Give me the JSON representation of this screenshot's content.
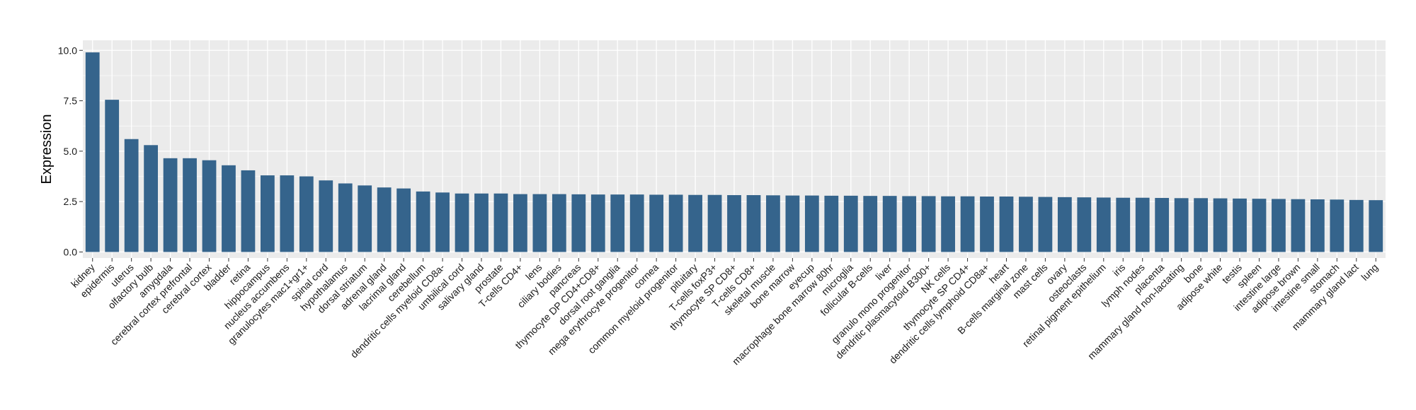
{
  "chart_data": {
    "type": "bar",
    "title": "",
    "xlabel": "",
    "ylabel": "Expression",
    "ylim": [
      -0.3,
      10.5
    ],
    "yticks": [
      0.0,
      2.5,
      5.0,
      7.5,
      10.0
    ],
    "ytick_labels": [
      "0.0",
      "2.5",
      "5.0",
      "7.5",
      "10.0"
    ],
    "grid": true,
    "legend": "none",
    "colors": {
      "bar": "#35648c",
      "panel": "#ebebeb",
      "grid": "#ffffff"
    },
    "categories": [
      "kidney",
      "epidermis",
      "uterus",
      "olfactory bulb",
      "amygdala",
      "cerebral cortex prefrontal",
      "cerebral cortex",
      "bladder",
      "retina",
      "hippocampus",
      "nucleus accumbens",
      "granulocytes mac1+gr1+",
      "spinal cord",
      "hypothalamus",
      "dorsal striatum",
      "adrenal gland",
      "lacrimal gland",
      "cerebellum",
      "dendritic cells myeloid CD8a-",
      "umbilical cord",
      "salivary gland",
      "prostate",
      "T-cells CD4+",
      "lens",
      "ciliary bodies",
      "pancreas",
      "thymocyte DP CD4+CD8+",
      "dorsal root ganglia",
      "mega erythrocyte progenitor",
      "cornea",
      "common myeloid progenitor",
      "pituitary",
      "T-cells foxP3+",
      "thymocyte SP CD8+",
      "T-cells CD8+",
      "skeletal muscle",
      "bone marrow",
      "eyecup",
      "macrophage bone marrow 80hr",
      "microglia",
      "follicular B-cells",
      "liver",
      "granulo mono progenitor",
      "dendritic plasmacytoid B300+",
      "NK cells",
      "thymocyte SP CD4+",
      "dendritic cells lymphoid CD8a+",
      "heart",
      "B-cells marginal zone",
      "mast cells",
      "ovary",
      "osteoclasts",
      "retinal pigment epithelium",
      "iris",
      "lymph nodes",
      "placenta",
      "mammary gland non-lactating",
      "bone",
      "adipose white",
      "testis",
      "spleen",
      "intestine large",
      "adipose brown",
      "intestine small",
      "stomach",
      "mammary gland  lact",
      "lung"
    ],
    "values": [
      9.9,
      7.55,
      5.6,
      5.3,
      4.65,
      4.65,
      4.55,
      4.3,
      4.05,
      3.8,
      3.8,
      3.75,
      3.55,
      3.4,
      3.3,
      3.2,
      3.15,
      3.0,
      2.95,
      2.9,
      2.9,
      2.9,
      2.87,
      2.87,
      2.87,
      2.86,
      2.85,
      2.85,
      2.85,
      2.84,
      2.84,
      2.83,
      2.83,
      2.82,
      2.82,
      2.81,
      2.8,
      2.8,
      2.79,
      2.79,
      2.78,
      2.78,
      2.77,
      2.77,
      2.76,
      2.76,
      2.75,
      2.75,
      2.74,
      2.73,
      2.72,
      2.71,
      2.7,
      2.69,
      2.69,
      2.68,
      2.67,
      2.67,
      2.66,
      2.65,
      2.64,
      2.63,
      2.62,
      2.61,
      2.6,
      2.58,
      2.57
    ]
  }
}
